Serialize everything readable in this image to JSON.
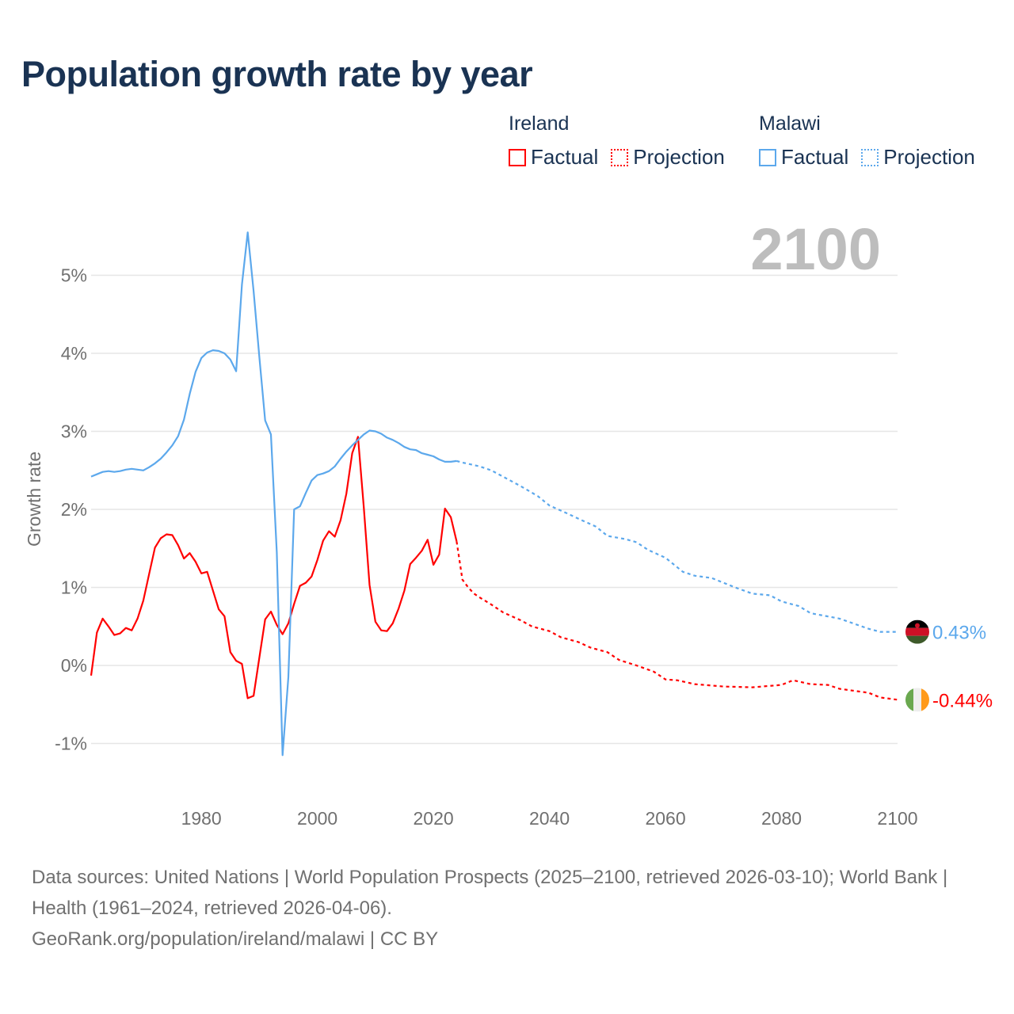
{
  "title": "Population growth rate by year",
  "current_year": "2100",
  "legend": {
    "groups": [
      {
        "name": "Ireland",
        "factual": "Factual",
        "projection": "Projection",
        "color": "#ff0000"
      },
      {
        "name": "Malawi",
        "factual": "Factual",
        "projection": "Projection",
        "color": "#5ca8ec"
      }
    ]
  },
  "end_labels": {
    "malawi": "0.43%",
    "ireland": "-0.44%"
  },
  "footer": {
    "sources": "Data sources: United Nations | World Population Prospects (2025–2100, retrieved 2026-03-10); World Bank | Health (1961–2024, retrieved 2026-04-06).",
    "link": "GeoRank.org/population/ireland/malawi | CC BY"
  },
  "chart_data": {
    "type": "line",
    "title": "Population growth rate by year",
    "xlabel": "",
    "ylabel": "Growth rate",
    "xlim": [
      1961,
      2100
    ],
    "ylim": [
      -1.5,
      5.8
    ],
    "x_ticks": [
      1980,
      2000,
      2020,
      2040,
      2060,
      2080,
      2100
    ],
    "y_ticks": [
      -1,
      0,
      1,
      2,
      3,
      4,
      5
    ],
    "y_tick_labels": [
      "-1%",
      "0%",
      "1%",
      "2%",
      "3%",
      "4%",
      "5%"
    ],
    "grid": true,
    "legend_position": "top-right",
    "series": [
      {
        "name": "Ireland Factual",
        "color": "#ff0000",
        "style": "solid",
        "x": [
          1961,
          1962,
          1963,
          1964,
          1965,
          1966,
          1967,
          1968,
          1969,
          1970,
          1971,
          1972,
          1973,
          1974,
          1975,
          1976,
          1977,
          1978,
          1979,
          1980,
          1981,
          1982,
          1983,
          1984,
          1985,
          1986,
          1987,
          1988,
          1989,
          1990,
          1991,
          1992,
          1993,
          1994,
          1995,
          1996,
          1997,
          1998,
          1999,
          2000,
          2001,
          2002,
          2003,
          2004,
          2005,
          2006,
          2007,
          2008,
          2009,
          2010,
          2011,
          2012,
          2013,
          2014,
          2015,
          2016,
          2017,
          2018,
          2019,
          2020,
          2021,
          2022,
          2023,
          2024
        ],
        "y": [
          -0.13,
          0.42,
          0.6,
          0.5,
          0.39,
          0.41,
          0.48,
          0.45,
          0.6,
          0.83,
          1.17,
          1.51,
          1.63,
          1.68,
          1.67,
          1.54,
          1.37,
          1.44,
          1.33,
          1.18,
          1.2,
          0.96,
          0.72,
          0.63,
          0.17,
          0.06,
          0.02,
          -0.42,
          -0.39,
          0.1,
          0.59,
          0.69,
          0.52,
          0.4,
          0.54,
          0.79,
          1.02,
          1.06,
          1.14,
          1.35,
          1.6,
          1.72,
          1.65,
          1.86,
          2.2,
          2.72,
          2.93,
          2.03,
          1.03,
          0.56,
          0.45,
          0.44,
          0.54,
          0.73,
          0.96,
          1.3,
          1.38,
          1.47,
          1.61,
          1.29,
          1.42,
          2.01,
          1.9,
          1.59
        ]
      },
      {
        "name": "Ireland Projection",
        "color": "#ff0000",
        "style": "dotted",
        "x": [
          2024,
          2025,
          2026,
          2027,
          2028,
          2030,
          2032,
          2035,
          2037,
          2040,
          2042,
          2045,
          2047,
          2050,
          2052,
          2055,
          2058,
          2060,
          2062,
          2065,
          2070,
          2075,
          2080,
          2082,
          2085,
          2088,
          2090,
          2095,
          2097,
          2100
        ],
        "y": [
          1.59,
          1.1,
          1.0,
          0.92,
          0.87,
          0.78,
          0.68,
          0.58,
          0.5,
          0.44,
          0.36,
          0.3,
          0.23,
          0.17,
          0.07,
          0.0,
          -0.08,
          -0.18,
          -0.19,
          -0.24,
          -0.27,
          -0.28,
          -0.25,
          -0.19,
          -0.24,
          -0.25,
          -0.3,
          -0.35,
          -0.41,
          -0.44
        ]
      },
      {
        "name": "Malawi Factual",
        "color": "#5ca8ec",
        "style": "solid",
        "x": [
          1961,
          1962,
          1963,
          1964,
          1965,
          1966,
          1967,
          1968,
          1969,
          1970,
          1971,
          1972,
          1973,
          1974,
          1975,
          1976,
          1977,
          1978,
          1979,
          1980,
          1981,
          1982,
          1983,
          1984,
          1985,
          1986,
          1987,
          1988,
          1989,
          1990,
          1991,
          1992,
          1993,
          1994,
          1995,
          1996,
          1997,
          1998,
          1999,
          2000,
          2001,
          2002,
          2003,
          2004,
          2005,
          2006,
          2007,
          2008,
          2009,
          2010,
          2011,
          2012,
          2013,
          2014,
          2015,
          2016,
          2017,
          2018,
          2019,
          2020,
          2021,
          2022,
          2023,
          2024
        ],
        "y": [
          2.42,
          2.45,
          2.48,
          2.49,
          2.48,
          2.49,
          2.51,
          2.52,
          2.51,
          2.5,
          2.54,
          2.59,
          2.65,
          2.73,
          2.82,
          2.94,
          3.15,
          3.48,
          3.76,
          3.94,
          4.01,
          4.04,
          4.03,
          4.0,
          3.92,
          3.77,
          4.88,
          5.55,
          4.8,
          3.95,
          3.14,
          2.96,
          1.45,
          -1.15,
          -0.15,
          2.0,
          2.04,
          2.21,
          2.37,
          2.44,
          2.46,
          2.49,
          2.55,
          2.65,
          2.74,
          2.82,
          2.89,
          2.96,
          3.01,
          3.0,
          2.97,
          2.92,
          2.89,
          2.85,
          2.8,
          2.77,
          2.76,
          2.72,
          2.7,
          2.68,
          2.64,
          2.61,
          2.61,
          2.62
        ]
      },
      {
        "name": "Malawi Projection",
        "color": "#5ca8ec",
        "style": "dotted",
        "x": [
          2024,
          2025,
          2028,
          2030,
          2033,
          2035,
          2038,
          2040,
          2043,
          2045,
          2048,
          2050,
          2053,
          2055,
          2057,
          2060,
          2063,
          2065,
          2068,
          2072,
          2075,
          2078,
          2080,
          2083,
          2085,
          2090,
          2095,
          2097,
          2100
        ],
        "y": [
          2.62,
          2.6,
          2.55,
          2.5,
          2.38,
          2.3,
          2.17,
          2.05,
          1.95,
          1.88,
          1.78,
          1.66,
          1.62,
          1.58,
          1.48,
          1.38,
          1.2,
          1.15,
          1.12,
          1.0,
          0.92,
          0.9,
          0.82,
          0.76,
          0.67,
          0.6,
          0.47,
          0.43,
          0.43
        ]
      }
    ]
  }
}
